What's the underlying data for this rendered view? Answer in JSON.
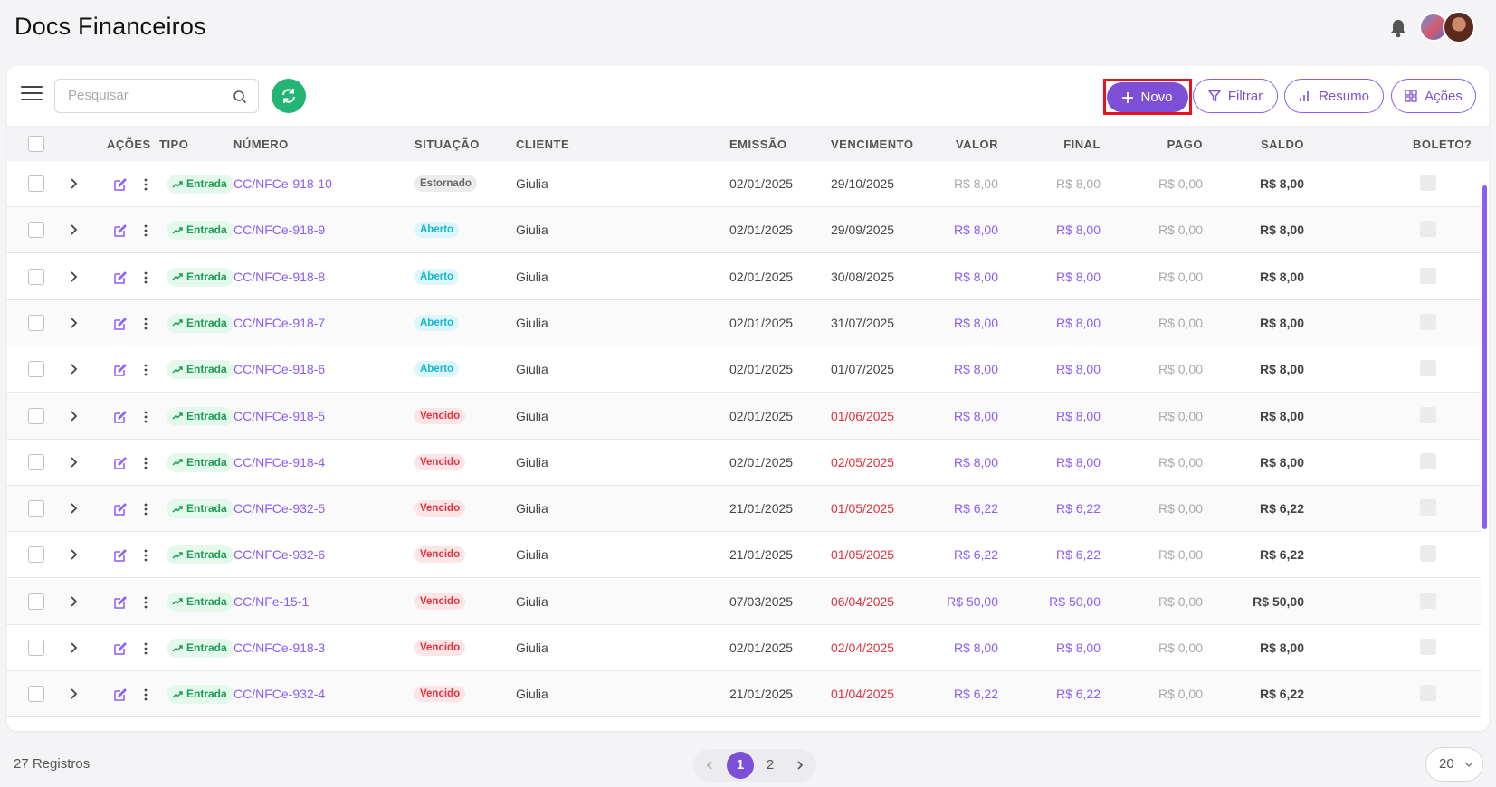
{
  "page": {
    "title": "Docs Financeiros"
  },
  "toolbar": {
    "search_placeholder": "Pesquisar",
    "novo_label": "Novo",
    "filtrar_label": "Filtrar",
    "resumo_label": "Resumo",
    "acoes_label": "Ações"
  },
  "table": {
    "headers": {
      "acoes": "AÇÕES",
      "tipo": "TIPO",
      "numero": "NÚMERO",
      "situacao": "SITUAÇÃO",
      "cliente": "CLIENTE",
      "emissao": "EMISSÃO",
      "vencimento": "VENCIMENTO",
      "valor": "VALOR",
      "final": "FINAL",
      "pago": "PAGO",
      "saldo": "SALDO",
      "boleto": "BOLETO?"
    },
    "rows": [
      {
        "tipo": "Entrada",
        "numero": "CC/NFCe-918-10",
        "situacao": "Estornado",
        "cliente": "Giulia",
        "emissao": "02/01/2025",
        "vencimento": "29/10/2025",
        "valor": "R$ 8,00",
        "final": "R$ 8,00",
        "pago": "R$ 0,00",
        "saldo": "R$ 8,00"
      },
      {
        "tipo": "Entrada",
        "numero": "CC/NFCe-918-9",
        "situacao": "Aberto",
        "cliente": "Giulia",
        "emissao": "02/01/2025",
        "vencimento": "29/09/2025",
        "valor": "R$ 8,00",
        "final": "R$ 8,00",
        "pago": "R$ 0,00",
        "saldo": "R$ 8,00"
      },
      {
        "tipo": "Entrada",
        "numero": "CC/NFCe-918-8",
        "situacao": "Aberto",
        "cliente": "Giulia",
        "emissao": "02/01/2025",
        "vencimento": "30/08/2025",
        "valor": "R$ 8,00",
        "final": "R$ 8,00",
        "pago": "R$ 0,00",
        "saldo": "R$ 8,00"
      },
      {
        "tipo": "Entrada",
        "numero": "CC/NFCe-918-7",
        "situacao": "Aberto",
        "cliente": "Giulia",
        "emissao": "02/01/2025",
        "vencimento": "31/07/2025",
        "valor": "R$ 8,00",
        "final": "R$ 8,00",
        "pago": "R$ 0,00",
        "saldo": "R$ 8,00"
      },
      {
        "tipo": "Entrada",
        "numero": "CC/NFCe-918-6",
        "situacao": "Aberto",
        "cliente": "Giulia",
        "emissao": "02/01/2025",
        "vencimento": "01/07/2025",
        "valor": "R$ 8,00",
        "final": "R$ 8,00",
        "pago": "R$ 0,00",
        "saldo": "R$ 8,00"
      },
      {
        "tipo": "Entrada",
        "numero": "CC/NFCe-918-5",
        "situacao": "Vencido",
        "cliente": "Giulia",
        "emissao": "02/01/2025",
        "vencimento": "01/06/2025",
        "valor": "R$ 8,00",
        "final": "R$ 8,00",
        "pago": "R$ 0,00",
        "saldo": "R$ 8,00"
      },
      {
        "tipo": "Entrada",
        "numero": "CC/NFCe-918-4",
        "situacao": "Vencido",
        "cliente": "Giulia",
        "emissao": "02/01/2025",
        "vencimento": "02/05/2025",
        "valor": "R$ 8,00",
        "final": "R$ 8,00",
        "pago": "R$ 0,00",
        "saldo": "R$ 8,00"
      },
      {
        "tipo": "Entrada",
        "numero": "CC/NFCe-932-5",
        "situacao": "Vencido",
        "cliente": "Giulia",
        "emissao": "21/01/2025",
        "vencimento": "01/05/2025",
        "valor": "R$ 6,22",
        "final": "R$ 6,22",
        "pago": "R$ 0,00",
        "saldo": "R$ 6,22"
      },
      {
        "tipo": "Entrada",
        "numero": "CC/NFCe-932-6",
        "situacao": "Vencido",
        "cliente": "Giulia",
        "emissao": "21/01/2025",
        "vencimento": "01/05/2025",
        "valor": "R$ 6,22",
        "final": "R$ 6,22",
        "pago": "R$ 0,00",
        "saldo": "R$ 6,22"
      },
      {
        "tipo": "Entrada",
        "numero": "CC/NFe-15-1",
        "situacao": "Vencido",
        "cliente": "Giulia",
        "emissao": "07/03/2025",
        "vencimento": "06/04/2025",
        "valor": "R$ 50,00",
        "final": "R$ 50,00",
        "pago": "R$ 0,00",
        "saldo": "R$ 50,00"
      },
      {
        "tipo": "Entrada",
        "numero": "CC/NFCe-918-3",
        "situacao": "Vencido",
        "cliente": "Giulia",
        "emissao": "02/01/2025",
        "vencimento": "02/04/2025",
        "valor": "R$ 8,00",
        "final": "R$ 8,00",
        "pago": "R$ 0,00",
        "saldo": "R$ 8,00"
      },
      {
        "tipo": "Entrada",
        "numero": "CC/NFCe-932-4",
        "situacao": "Vencido",
        "cliente": "Giulia",
        "emissao": "21/01/2025",
        "vencimento": "01/04/2025",
        "valor": "R$ 6,22",
        "final": "R$ 6,22",
        "pago": "R$ 0,00",
        "saldo": "R$ 6,22"
      }
    ]
  },
  "footer": {
    "records": "27 Registros",
    "pages": [
      "1",
      "2"
    ],
    "current_page": "1",
    "page_size": "20"
  },
  "icons": {
    "menu": "hamburger-icon",
    "search": "search-icon",
    "refresh": "refresh-icon",
    "bell": "bell-icon",
    "plus": "plus-icon",
    "filter": "filter-icon",
    "chart": "bar-chart-icon",
    "grid": "grid-icon",
    "expand": "chevron-right-icon",
    "edit": "edit-icon",
    "more": "kebab-icon",
    "trend": "trending-up-icon"
  },
  "colors": {
    "accent": "#7c4fd6",
    "refresh": "#22b573",
    "entrada": "#1d9d55",
    "aberto": "#1ab6d0",
    "vencido": "#e0343f",
    "highlight": "#e8121c"
  }
}
